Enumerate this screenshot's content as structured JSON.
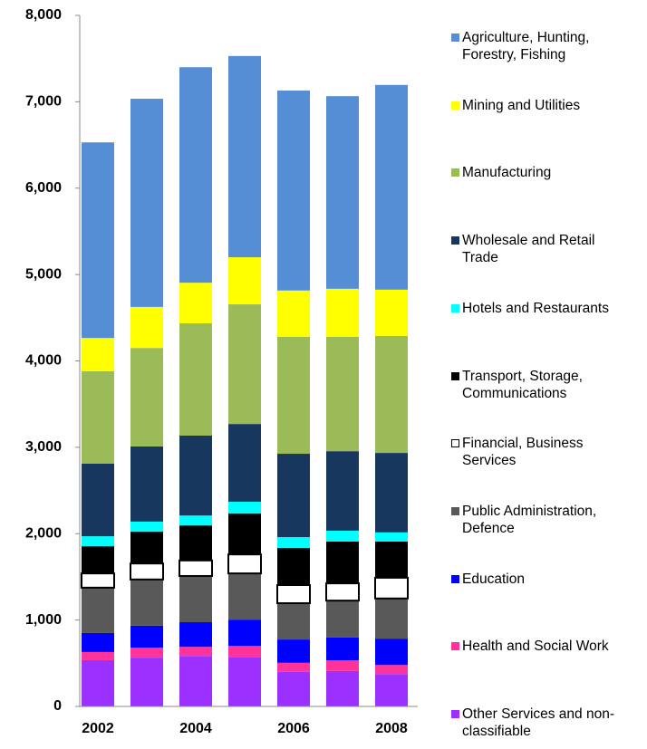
{
  "chart_data": {
    "type": "stacked_bar",
    "categories": [
      "2002",
      null,
      "2004",
      null,
      "2006",
      null,
      "2008"
    ],
    "ylim": [
      0,
      8000
    ],
    "yticks": [
      {
        "value": 0,
        "label": "0"
      },
      {
        "value": 1000,
        "label": "1,000"
      },
      {
        "value": 2000,
        "label": "2,000"
      },
      {
        "value": 3000,
        "label": "3,000"
      },
      {
        "value": 4000,
        "label": "4,000"
      },
      {
        "value": 5000,
        "label": "5,000"
      },
      {
        "value": 6000,
        "label": "6,000"
      },
      {
        "value": 7000,
        "label": "7,000"
      },
      {
        "value": 8000,
        "label": "8,000"
      }
    ],
    "grid": false,
    "legend": "right",
    "series": [
      {
        "name": "Other Services and non-classifiable",
        "color": "#9b30ff",
        "values": [
          535,
          565,
          585,
          570,
          400,
          410,
          375
        ]
      },
      {
        "name": "Health and Social Work",
        "color": "#ff3399",
        "values": [
          95,
          115,
          105,
          130,
          105,
          125,
          105
        ]
      },
      {
        "name": "Education",
        "color": "#0000ff",
        "values": [
          220,
          255,
          285,
          305,
          270,
          265,
          305
        ]
      },
      {
        "name": "Public Administration, Defence",
        "color": "#595959",
        "values": [
          525,
          535,
          535,
          535,
          420,
          425,
          465
        ]
      },
      {
        "name": "Financial, Business Services",
        "color": "#ffffff",
        "values": [
          165,
          185,
          180,
          220,
          210,
          200,
          240
        ]
      },
      {
        "name": "Transport, Storage, Communications",
        "color": "#000000",
        "values": [
          315,
          370,
          405,
          475,
          430,
          485,
          420
        ]
      },
      {
        "name": "Hotels and Restaurants",
        "color": "#00ffff",
        "values": [
          115,
          115,
          115,
          135,
          125,
          125,
          105
        ]
      },
      {
        "name": "Wholesale and Retail Trade",
        "color": "#17375e",
        "values": [
          840,
          870,
          925,
          900,
          965,
          920,
          920
        ]
      },
      {
        "name": "Manufacturing",
        "color": "#9bbb59",
        "values": [
          1070,
          1140,
          1300,
          1385,
          1355,
          1325,
          1355
        ]
      },
      {
        "name": "Mining and Utilities",
        "color": "#ffff00",
        "values": [
          385,
          475,
          470,
          545,
          535,
          555,
          535
        ]
      },
      {
        "name": "Agriculture, Hunting, Forestry, Fishing",
        "color": "#558ed5",
        "values": [
          2265,
          2410,
          2495,
          2330,
          2315,
          2230,
          2370
        ]
      }
    ]
  }
}
